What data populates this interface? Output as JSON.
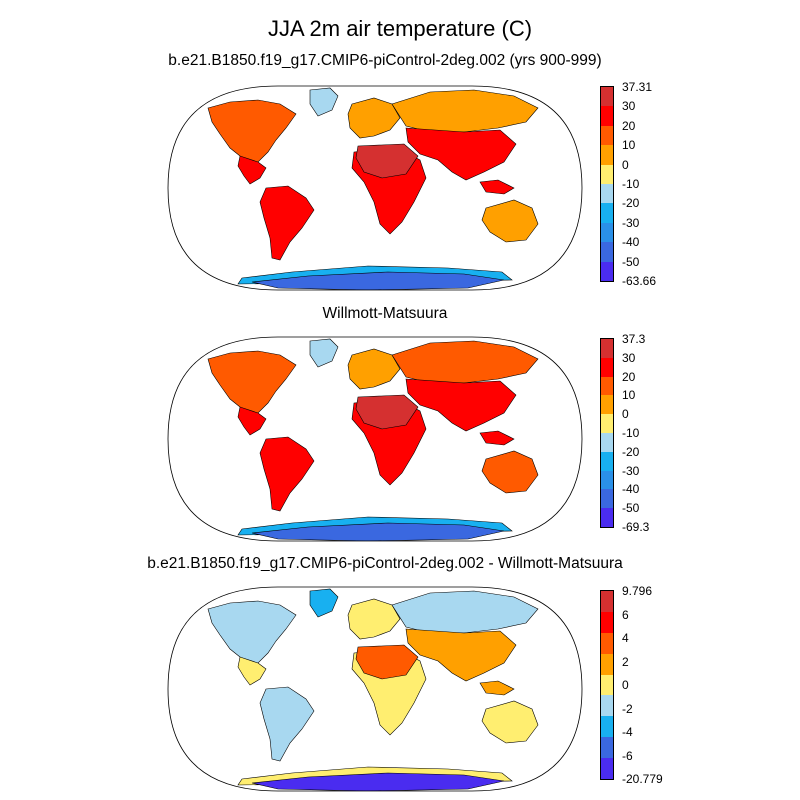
{
  "title": "JJA 2m air temperature (C)",
  "panels": [
    {
      "title": "b.e21.B1850.f19_g17.CMIP6-piControl-2deg.002 (yrs 900-999)",
      "colorbar": {
        "labels": [
          "37.31",
          "30",
          "20",
          "10",
          "0",
          "-10",
          "-20",
          "-30",
          "-40",
          "-50",
          "-63.66"
        ],
        "colors": [
          "#d53030",
          "#ff0000",
          "#ff5a00",
          "#ffa000",
          "#ffee70",
          "#a8d8f0",
          "#18b0f0",
          "#2a90e8",
          "#3a68e0",
          "#4a2cf0"
        ]
      },
      "land_colors": {
        "na": "#ff5a00",
        "na_south": "#ff0000",
        "greenland": "#a8d8f0",
        "sa": "#ff0000",
        "europe": "#ffa000",
        "africa": "#ff0000",
        "sahara": "#d53030",
        "asia_north": "#ffa000",
        "asia_south": "#ff0000",
        "australia": "#ffa000",
        "antarctica": "#3a68e0",
        "antarctica_edge": "#18b0f0"
      }
    },
    {
      "title": "Willmott-Matsuura",
      "colorbar": {
        "labels": [
          "37.3",
          "30",
          "20",
          "10",
          "0",
          "-10",
          "-20",
          "-30",
          "-40",
          "-50",
          "-69.3"
        ],
        "colors": [
          "#d53030",
          "#ff0000",
          "#ff5a00",
          "#ffa000",
          "#ffee70",
          "#a8d8f0",
          "#18b0f0",
          "#2a90e8",
          "#3a68e0",
          "#4a2cf0"
        ]
      },
      "land_colors": {
        "na": "#ff5a00",
        "na_south": "#ff0000",
        "greenland": "#a8d8f0",
        "sa": "#ff0000",
        "europe": "#ffa000",
        "africa": "#ff0000",
        "sahara": "#d53030",
        "asia_north": "#ff5a00",
        "asia_south": "#ff0000",
        "australia": "#ff5a00",
        "antarctica": "#3a68e0",
        "antarctica_edge": "#18b0f0"
      }
    },
    {
      "title": "b.e21.B1850.f19_g17.CMIP6-piControl-2deg.002 - Willmott-Matsuura",
      "colorbar": {
        "labels": [
          "9.796",
          "6",
          "4",
          "2",
          "0",
          "-2",
          "-4",
          "-6",
          "-20.779"
        ],
        "colors": [
          "#d53030",
          "#ff0000",
          "#ff5a00",
          "#ffa000",
          "#ffee70",
          "#a8d8f0",
          "#18b0f0",
          "#3a68e0",
          "#4a2cf0"
        ]
      },
      "land_colors": {
        "na": "#a8d8f0",
        "na_south": "#ffee70",
        "greenland": "#18b0f0",
        "sa": "#a8d8f0",
        "europe": "#ffee70",
        "africa": "#ffee70",
        "sahara": "#ff5a00",
        "asia_north": "#a8d8f0",
        "asia_south": "#ffa000",
        "australia": "#ffee70",
        "antarctica": "#4a2cf0",
        "antarctica_edge": "#ffee70"
      }
    }
  ]
}
